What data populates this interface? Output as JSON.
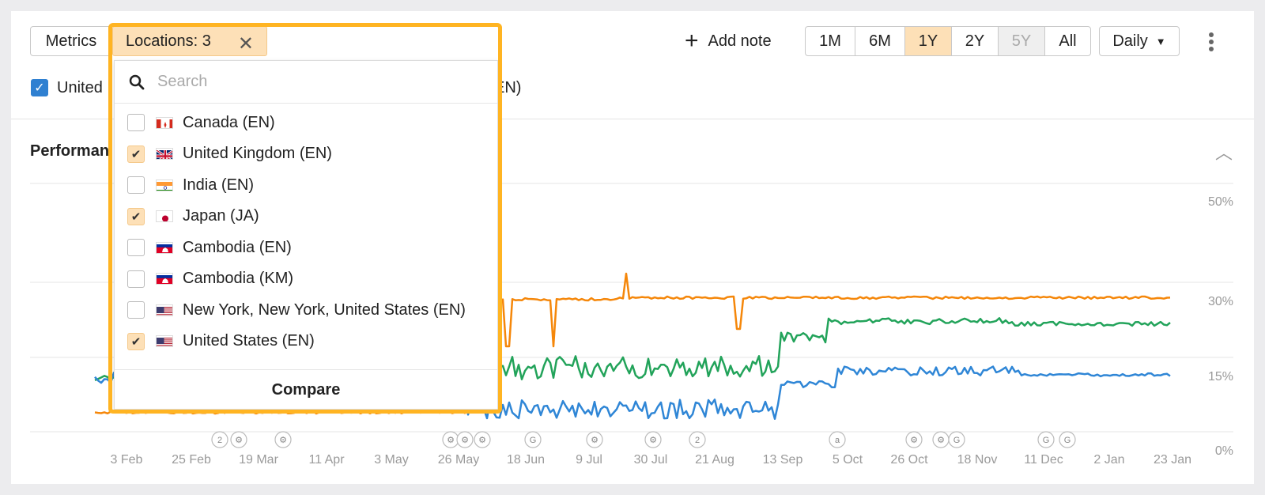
{
  "toolbar": {
    "metrics_label": "Metrics",
    "locations_label": "Locations: 3",
    "close_label": "✕",
    "add_note_label": "Add note",
    "ranges": [
      {
        "label": "1M",
        "state": "normal"
      },
      {
        "label": "6M",
        "state": "normal"
      },
      {
        "label": "1Y",
        "state": "active"
      },
      {
        "label": "2Y",
        "state": "normal"
      },
      {
        "label": "5Y",
        "state": "disabled"
      },
      {
        "label": "All",
        "state": "normal"
      }
    ],
    "granularity_label": "Daily"
  },
  "legend": {
    "visible_left": "United",
    "visible_right": "EN)"
  },
  "section": {
    "title_visible": "Performan"
  },
  "dropdown": {
    "search_placeholder": "Search",
    "items": [
      {
        "label": "Canada (EN)",
        "checked": false,
        "flag": "ca"
      },
      {
        "label": "United Kingdom (EN)",
        "checked": true,
        "flag": "gb"
      },
      {
        "label": "India (EN)",
        "checked": false,
        "flag": "in"
      },
      {
        "label": "Japan (JA)",
        "checked": true,
        "flag": "jp"
      },
      {
        "label": "Cambodia (EN)",
        "checked": false,
        "flag": "kh"
      },
      {
        "label": "Cambodia (KM)",
        "checked": false,
        "flag": "kh"
      },
      {
        "label": "New York, New York, United States (EN)",
        "checked": false,
        "flag": "us"
      },
      {
        "label": "United States (EN)",
        "checked": true,
        "flag": "us"
      }
    ],
    "compare_label": "Compare"
  },
  "colors": {
    "accent_highlight": "#ffb422",
    "active_fill": "#fde0b7",
    "series_orange": "#f5870a",
    "series_green": "#22a35a",
    "series_blue": "#2f86d6"
  },
  "chart_data": {
    "type": "line",
    "y_ticks": [
      "50%",
      "30%",
      "15%",
      "0%"
    ],
    "x_ticks": [
      "3 Feb",
      "25 Feb",
      "19 Mar",
      "11 Apr",
      "3 May",
      "26 May",
      "18 Jun",
      "9 Jul",
      "30 Jul",
      "21 Aug",
      "13 Sep",
      "5 Oct",
      "26 Oct",
      "18 Nov",
      "11 Dec",
      "2 Jan",
      "23 Jan"
    ],
    "annotation_markers": [
      "2",
      "⚙",
      "⚙",
      "⚙",
      "⚙",
      "⚙",
      "G",
      "⚙",
      "⚙",
      "2",
      "a",
      "⚙",
      "⚙",
      "G",
      "G",
      "G"
    ],
    "series": [
      {
        "color": "#f5870a",
        "values_end": 30
      },
      {
        "color": "#22a35a",
        "values_end": 27
      },
      {
        "color": "#2f86d6",
        "values_end": 15
      }
    ]
  }
}
